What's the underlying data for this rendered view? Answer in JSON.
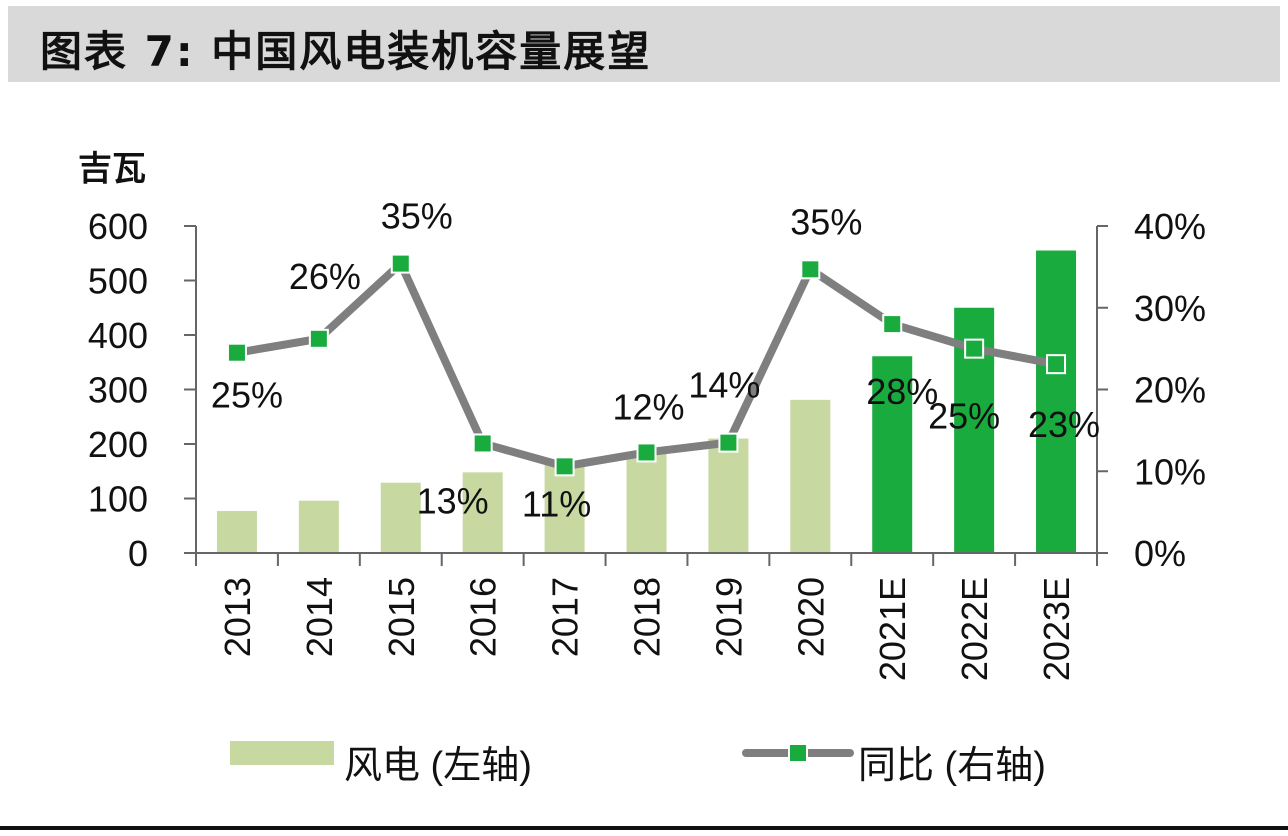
{
  "header": {
    "title": "图表 7: 中国风电装机容量展望"
  },
  "colors": {
    "bar_actual": "#c7d8a0",
    "bar_estimate": "#1aab3f",
    "line": "#7f7f7f",
    "marker": "#1aab3f",
    "title_background": "#d9d9d9"
  },
  "chart_data": {
    "type": "bar",
    "categories": [
      "2013",
      "2014",
      "2015",
      "2016",
      "2017",
      "2018",
      "2019",
      "2020",
      "2021E",
      "2022E",
      "2023E"
    ],
    "estimate_from_index": 8,
    "y_unit_label": "吉瓦",
    "y_left": {
      "lim": [
        0,
        600
      ],
      "ticks": [
        "0",
        "100",
        "200",
        "300",
        "400",
        "500",
        "600"
      ]
    },
    "y_right": {
      "lim": [
        0,
        40
      ],
      "ticks": [
        "0%",
        "10%",
        "20%",
        "30%",
        "40%"
      ]
    },
    "series": [
      {
        "name": "风电 (左轴)",
        "kind": "bar",
        "axis": "left",
        "values": [
          77,
          96,
          129,
          148,
          164,
          184,
          210,
          281,
          361,
          450,
          555
        ]
      },
      {
        "name": "同比 (右轴)",
        "kind": "line",
        "axis": "right",
        "values": [
          24.5,
          26.2,
          35.4,
          13.4,
          10.6,
          12.3,
          13.5,
          34.7,
          28.0,
          25.0,
          23.1
        ],
        "labels": [
          "25%",
          "26%",
          "35%",
          "13%",
          "11%",
          "12%",
          "14%",
          "35%",
          "28%",
          "25%",
          "23%"
        ]
      }
    ],
    "legend": "bottom"
  }
}
